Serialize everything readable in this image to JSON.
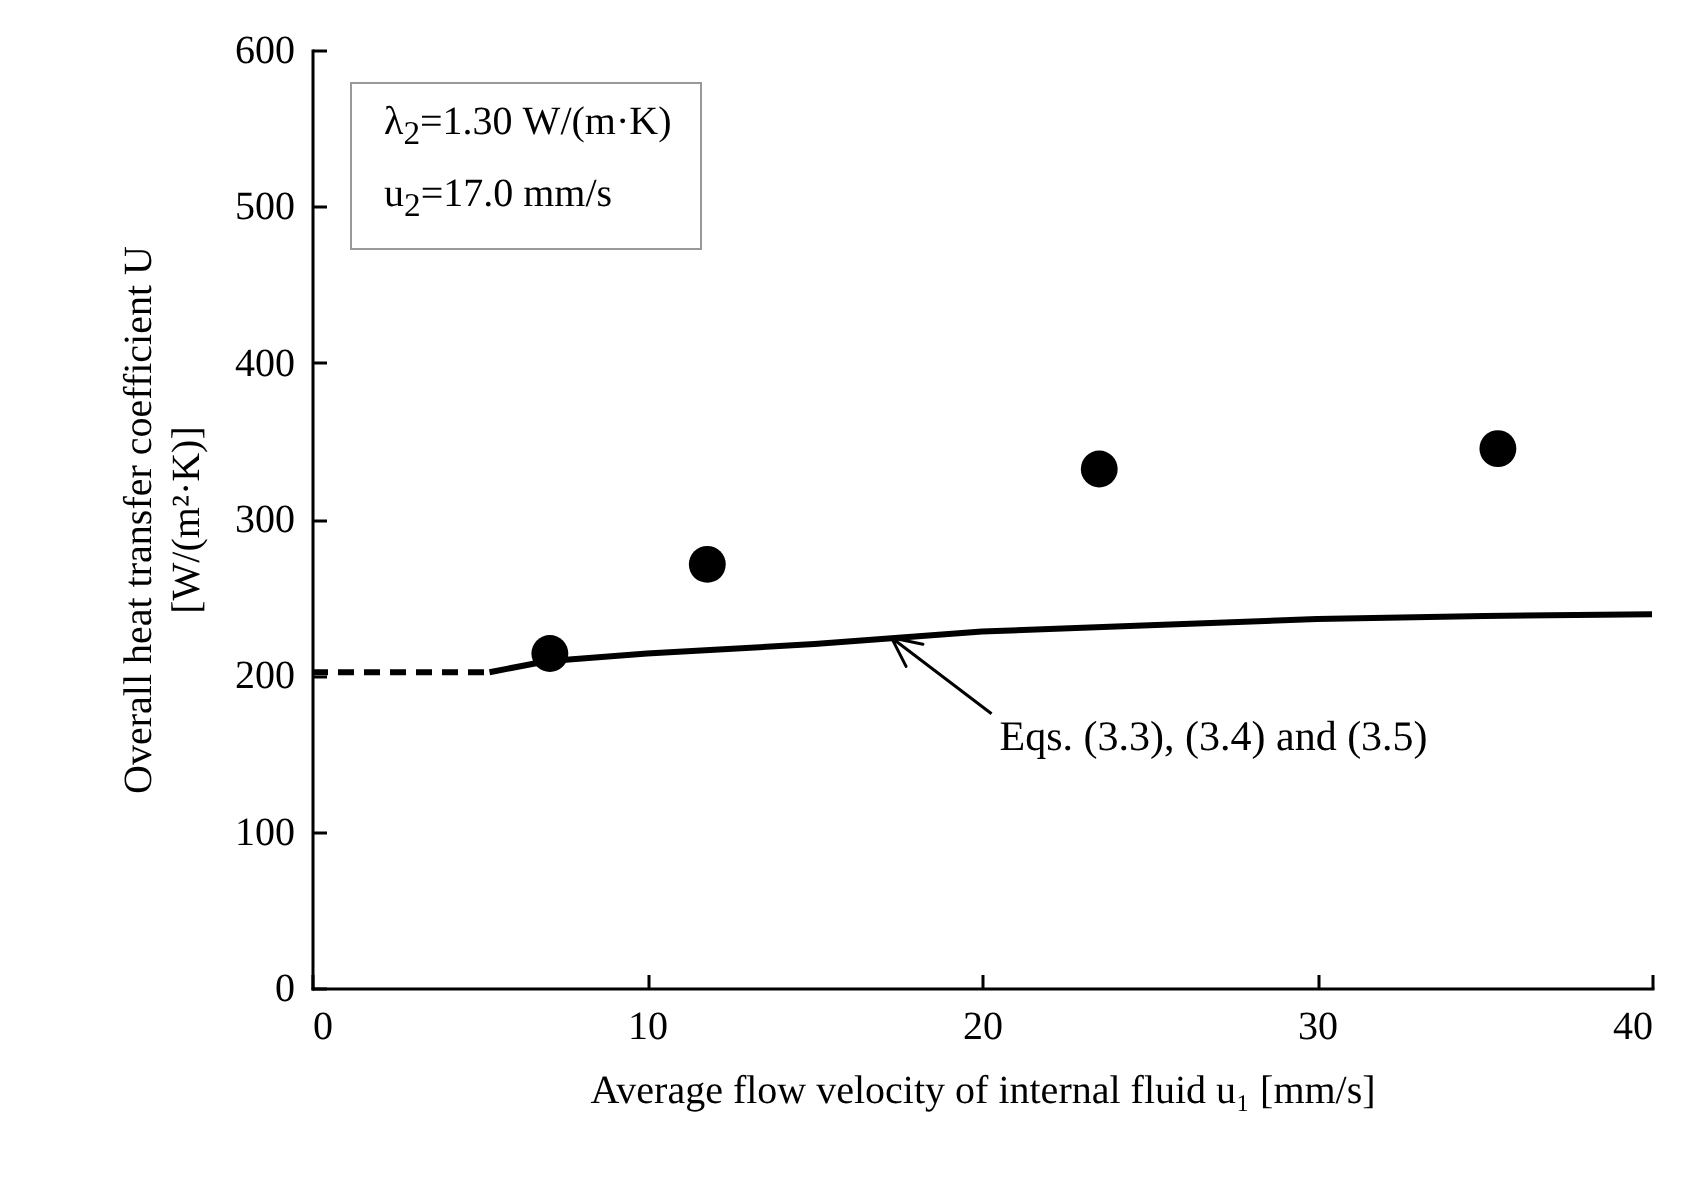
{
  "chart_data": {
    "type": "scatter",
    "xlabel": "Average flow velocity of internal fluid u₁ [mm/s]",
    "ylabel": "Overall heat transfer coefficient U\n[W/(m²·K)]",
    "xlim": [
      0,
      40
    ],
    "xticks": [
      0,
      10,
      20,
      30,
      40
    ],
    "ylim": [
      0,
      600
    ],
    "yticks": [
      0,
      100,
      200,
      300,
      400,
      500,
      600
    ],
    "grid": false,
    "series": [
      {
        "color": "#000000",
        "marker": "circle",
        "x": [
          7.1,
          11.8,
          23.5,
          35.4
        ],
        "values": [
          214,
          271,
          332,
          345
        ]
      },
      {
        "type": "line",
        "color": "#000000",
        "line_style": "dashed",
        "x": [
          0,
          5.3
        ],
        "values": [
          202,
          202
        ]
      },
      {
        "type": "line",
        "color": "#000000",
        "line_style": "solid",
        "x": [
          5.3,
          7,
          10,
          15,
          20,
          25,
          30,
          35,
          40
        ],
        "values": [
          202,
          209,
          214,
          220,
          228,
          232,
          236,
          238,
          239
        ]
      }
    ],
    "annotations": [
      "λ$_{2}$=1.30 W/(m·K)",
      "u$_{2}$=17.0 mm/s",
      {
        "text": "Eqs. (3.3), (3.4) and (3.5)",
        "x": 17.3,
        "y": 224
      }
    ]
  }
}
